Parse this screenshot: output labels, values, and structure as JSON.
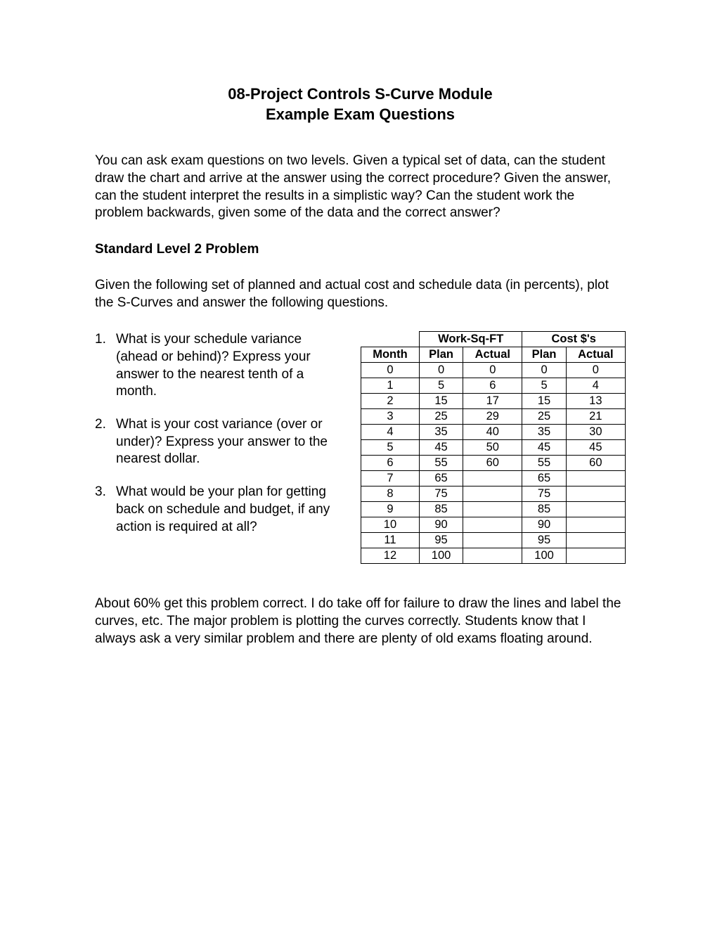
{
  "title": {
    "line1": "08-Project Controls S-Curve Module",
    "line2": "Example Exam Questions"
  },
  "intro": "You can ask exam questions on two levels.  Given a typical set of data, can the student draw the chart and arrive at the answer using the correct procedure?  Given the answer, can the student interpret the results in a simplistic way?  Can the student work the problem backwards, given some of the data and the correct answer?",
  "section_heading": "Standard Level 2 Problem",
  "given": "Given the following set of planned and actual cost and schedule data (in percents), plot the S-Curves and answer the following questions.",
  "questions": [
    {
      "num": "1.",
      "text": "What is your schedule variance (ahead or behind)?  Express your answer to the nearest tenth of a month."
    },
    {
      "num": "2.",
      "text": "What is your cost variance (over or under)?  Express your answer to the nearest dollar."
    },
    {
      "num": "3.",
      "text": "What would be your plan for getting back on schedule and budget, if any action is required at all?"
    }
  ],
  "table": {
    "group_headers": {
      "work": "Work-Sq-FT",
      "cost": "Cost $'s"
    },
    "col_headers": {
      "month": "Month",
      "plan": "Plan",
      "actual": "Actual"
    },
    "rows": [
      {
        "month": "0",
        "work_plan": "0",
        "work_actual": "0",
        "cost_plan": "0",
        "cost_actual": "0"
      },
      {
        "month": "1",
        "work_plan": "5",
        "work_actual": "6",
        "cost_plan": "5",
        "cost_actual": "4"
      },
      {
        "month": "2",
        "work_plan": "15",
        "work_actual": "17",
        "cost_plan": "15",
        "cost_actual": "13"
      },
      {
        "month": "3",
        "work_plan": "25",
        "work_actual": "29",
        "cost_plan": "25",
        "cost_actual": "21"
      },
      {
        "month": "4",
        "work_plan": "35",
        "work_actual": "40",
        "cost_plan": "35",
        "cost_actual": "30"
      },
      {
        "month": "5",
        "work_plan": "45",
        "work_actual": "50",
        "cost_plan": "45",
        "cost_actual": "45"
      },
      {
        "month": "6",
        "work_plan": "55",
        "work_actual": "60",
        "cost_plan": "55",
        "cost_actual": "60"
      },
      {
        "month": "7",
        "work_plan": "65",
        "work_actual": "",
        "cost_plan": "65",
        "cost_actual": ""
      },
      {
        "month": "8",
        "work_plan": "75",
        "work_actual": "",
        "cost_plan": "75",
        "cost_actual": ""
      },
      {
        "month": "9",
        "work_plan": "85",
        "work_actual": "",
        "cost_plan": "85",
        "cost_actual": ""
      },
      {
        "month": "10",
        "work_plan": "90",
        "work_actual": "",
        "cost_plan": "90",
        "cost_actual": ""
      },
      {
        "month": "11",
        "work_plan": "95",
        "work_actual": "",
        "cost_plan": "95",
        "cost_actual": ""
      },
      {
        "month": "12",
        "work_plan": "100",
        "work_actual": "",
        "cost_plan": "100",
        "cost_actual": ""
      }
    ],
    "col_widths": {
      "month": "20%",
      "data": "20%"
    },
    "border_color": "#000000",
    "font_size": 16.5,
    "header_weight": "bold",
    "background": "#ffffff"
  },
  "closing": "About 60% get this problem correct.  I do take off for failure to draw the lines and label the curves, etc. The major problem is plotting the curves correctly.  Students know that I always ask a very similar problem and  there are plenty of old exams floating around.",
  "styles": {
    "page_bg": "#ffffff",
    "text_color": "#000000",
    "body_font_size": 19,
    "title_font_size": 22,
    "font_family": "Arial"
  }
}
